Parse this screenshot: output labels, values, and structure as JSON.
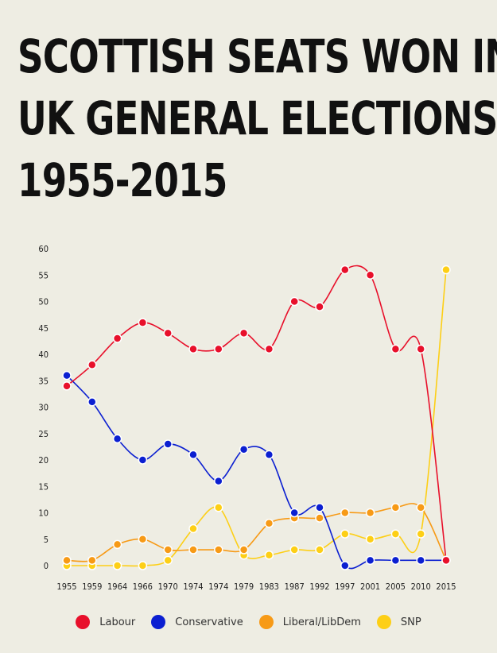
{
  "chart_data": {
    "type": "line",
    "title": "SCOTTISH SEATS WON IN UK GENERAL ELECTIONS 1955-2015",
    "title_lines": [
      "SCOTTISH SEATS WON IN",
      "UK GENERAL ELECTIONS",
      "1955-2015"
    ],
    "categories": [
      "1955",
      "1959",
      "1964",
      "1966",
      "1970",
      "1974",
      "1974",
      "1979",
      "1983",
      "1987",
      "1992",
      "1997",
      "2001",
      "2005",
      "2010",
      "2015"
    ],
    "y_ticks": [
      "60",
      "55",
      "50",
      "45",
      "40",
      "35",
      "30",
      "25",
      "20",
      "15",
      "10",
      "5",
      "0"
    ],
    "ylim": [
      0,
      60
    ],
    "grid": false,
    "legend_position": "bottom",
    "series": [
      {
        "name": "Labour",
        "color": "#e8102b",
        "values": [
          34,
          38,
          43,
          46,
          44,
          41,
          41,
          44,
          41,
          50,
          49,
          56,
          55,
          41,
          41,
          1
        ]
      },
      {
        "name": "Conservative",
        "color": "#0b1fd1",
        "values": [
          36,
          31,
          24,
          20,
          23,
          21,
          16,
          22,
          21,
          10,
          11,
          0,
          1,
          1,
          1,
          1
        ]
      },
      {
        "name": "Liberal/LibDem",
        "color": "#f79a16",
        "values": [
          1,
          1,
          4,
          5,
          3,
          3,
          3,
          3,
          8,
          9,
          9,
          10,
          10,
          11,
          11,
          1
        ]
      },
      {
        "name": "SNP",
        "color": "#fdcf16",
        "values": [
          0,
          0,
          0,
          0,
          1,
          7,
          11,
          2,
          2,
          3,
          3,
          6,
          5,
          6,
          6,
          56
        ]
      }
    ]
  }
}
